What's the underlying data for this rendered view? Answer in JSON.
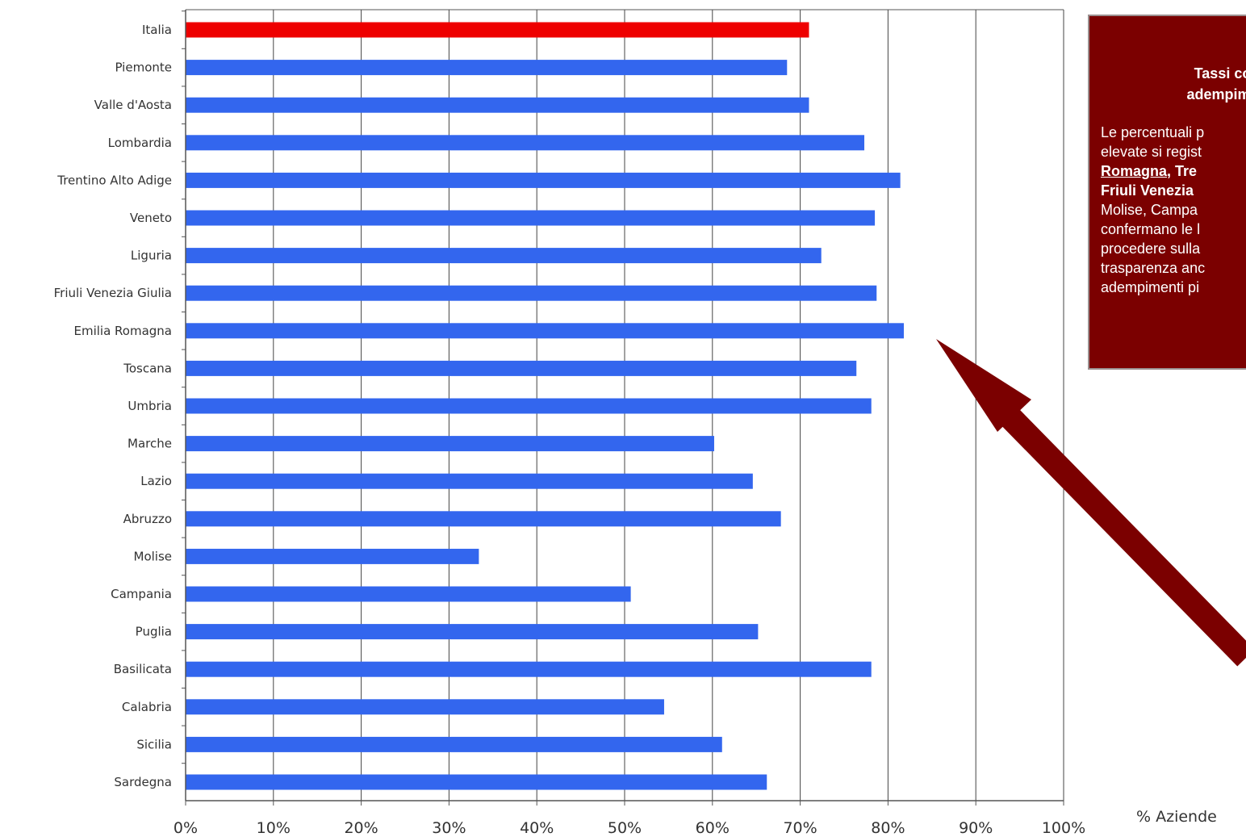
{
  "chart_data": {
    "type": "bar",
    "orientation": "horizontal",
    "categories": [
      "Italia",
      "Piemonte",
      "Valle d'Aosta",
      "Lombardia",
      "Trentino Alto Adige",
      "Veneto",
      "Liguria",
      "Friuli Venezia Giulia",
      "Emilia Romagna",
      "Toscana",
      "Umbria",
      "Marche",
      "Lazio",
      "Abruzzo",
      "Molise",
      "Campania",
      "Puglia",
      "Basilicata",
      "Calabria",
      "Sicilia",
      "Sardegna"
    ],
    "values": [
      71,
      68.5,
      71,
      77.3,
      81.4,
      78.5,
      72.4,
      78.7,
      81.8,
      76.4,
      78.1,
      60.2,
      64.6,
      67.8,
      33.4,
      50.7,
      65.2,
      78.1,
      54.5,
      61.1,
      66.2
    ],
    "highlight_category": "Italia",
    "colors": {
      "highlight": "#ee0000",
      "bar": "#3366ee",
      "axis": "#555555",
      "grid": "#444444"
    },
    "xlim": [
      0,
      100
    ],
    "x_ticks": [
      "0%",
      "10%",
      "20%",
      "30%",
      "40%",
      "50%",
      "60%",
      "70%",
      "80%",
      "90%",
      "100%"
    ],
    "xlabel": "% Aziende",
    "grid": "vertical"
  },
  "info_box": {
    "title": "Tassi co\nadempime",
    "body_lines": [
      {
        "text": "Le percentuali p",
        "style": "normal"
      },
      {
        "text": "elevate si regist",
        "style": "normal"
      },
      {
        "text": "Romagna,",
        "style": "underline",
        "rest": " Tre"
      },
      {
        "text": "Friuli Venezia",
        "style": "bold"
      },
      {
        "text": "Molise, Campa",
        "style": "normal"
      },
      {
        "text": "confermano le l",
        "style": "normal"
      },
      {
        "text": "procedere sulla",
        "style": "normal"
      },
      {
        "text": "trasparenza anc",
        "style": "normal"
      },
      {
        "text": "adempimenti pi",
        "style": "normal"
      }
    ],
    "background": "#7b0000"
  },
  "arrow": {
    "color": "#7b0000",
    "icon": "arrow-up-left-icon"
  }
}
